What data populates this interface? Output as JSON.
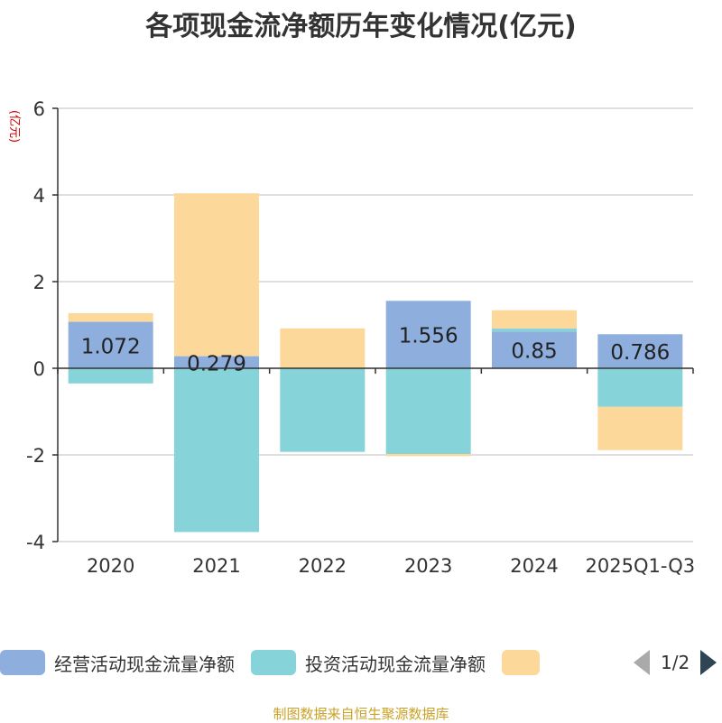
{
  "chart_data": {
    "type": "bar",
    "stacked": true,
    "title": "各项现金流净额历年变化情况(亿元)",
    "ylabel": "(亿元)",
    "ylim": [
      -4,
      6
    ],
    "yticks": [
      6,
      4,
      2,
      0,
      -2,
      -4
    ],
    "ytick_labels": [
      "6",
      "4",
      "2",
      "0",
      "-2",
      "-4"
    ],
    "categories": [
      "2020",
      "2021",
      "2022",
      "2023",
      "2024",
      "2025Q1-Q3"
    ],
    "series": [
      {
        "name": "经营活动现金流量净额",
        "color": "#8eaede",
        "values": [
          1.072,
          0.279,
          0.0,
          1.556,
          0.85,
          0.786
        ],
        "labels": [
          "1.072",
          "0.279",
          "",
          "1.556",
          "0.85",
          "0.786"
        ]
      },
      {
        "name": "投资活动现金流量净额",
        "color": "#86d4d9",
        "values": [
          -0.35,
          -3.78,
          -1.93,
          -1.98,
          0.07,
          -0.89
        ],
        "labels": [
          "",
          "",
          "",
          "",
          "",
          ""
        ]
      },
      {
        "name": "",
        "color": "#fdd89b",
        "values": [
          0.2,
          3.76,
          0.92,
          -0.05,
          0.42,
          -1.0
        ],
        "labels": [
          "",
          "",
          "",
          "",
          "",
          ""
        ]
      }
    ]
  },
  "legend": {
    "items": [
      {
        "label": "经营活动现金流量净额",
        "color": "#8eaede"
      },
      {
        "label": "投资活动现金流量净额",
        "color": "#86d4d9"
      },
      {
        "label": "",
        "color": "#fdd89b"
      }
    ],
    "page": "1/2"
  },
  "source": "制图数据来自恒生聚源数据库"
}
